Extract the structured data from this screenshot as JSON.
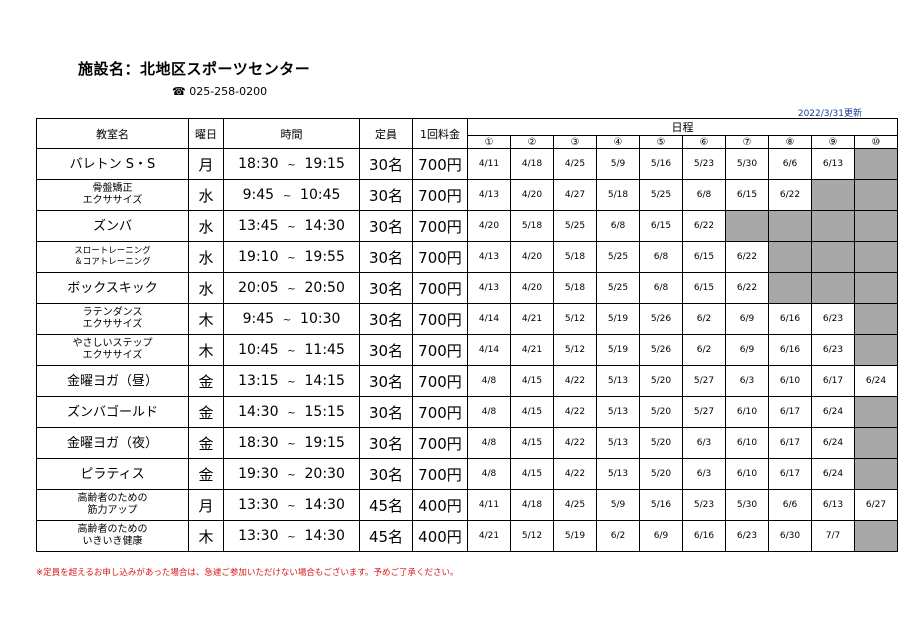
{
  "header": {
    "facility": "施設名：北地区スポーツセンター",
    "phone_icon": "☎",
    "phone": "025-258-0200",
    "updated": "2022/3/31更新"
  },
  "table": {
    "headers": {
      "class": "教室名",
      "day": "曜日",
      "time": "時間",
      "capacity": "定員",
      "fee": "1回料金",
      "schedule": "日程"
    },
    "session_numbers": [
      "①",
      "②",
      "③",
      "④",
      "⑤",
      "⑥",
      "⑦",
      "⑧",
      "⑨",
      "⑩"
    ],
    "tilde": "~",
    "rows": [
      {
        "name": [
          "バレトン S・S"
        ],
        "size": "normal",
        "day": "月",
        "start": "18:30",
        "end": "19:15",
        "cap": "30名",
        "fee": "700円",
        "dates": [
          "4/11",
          "4/18",
          "4/25",
          "5/9",
          "5/16",
          "5/23",
          "5/30",
          "6/6",
          "6/13",
          ""
        ]
      },
      {
        "name": [
          "骨盤矯正",
          "エクササイズ"
        ],
        "size": "small",
        "day": "水",
        "start": "9:45",
        "end": "10:45",
        "cap": "30名",
        "fee": "700円",
        "dates": [
          "4/13",
          "4/20",
          "4/27",
          "5/18",
          "5/25",
          "6/8",
          "6/15",
          "6/22",
          "",
          ""
        ]
      },
      {
        "name": [
          "ズンバ"
        ],
        "size": "normal",
        "day": "水",
        "start": "13:45",
        "end": "14:30",
        "cap": "30名",
        "fee": "700円",
        "dates": [
          "4/20",
          "5/18",
          "5/25",
          "6/8",
          "6/15",
          "6/22",
          "",
          "",
          "",
          ""
        ]
      },
      {
        "name": [
          "スロートレーニング",
          "＆コアトレーニング"
        ],
        "size": "tiny",
        "day": "水",
        "start": "19:10",
        "end": "19:55",
        "cap": "30名",
        "fee": "700円",
        "dates": [
          "4/13",
          "4/20",
          "5/18",
          "5/25",
          "6/8",
          "6/15",
          "6/22",
          "",
          "",
          ""
        ]
      },
      {
        "name": [
          "ボックスキック"
        ],
        "size": "normal",
        "day": "水",
        "start": "20:05",
        "end": "20:50",
        "cap": "30名",
        "fee": "700円",
        "dates": [
          "4/13",
          "4/20",
          "5/18",
          "5/25",
          "6/8",
          "6/15",
          "6/22",
          "",
          "",
          ""
        ]
      },
      {
        "name": [
          "ラテンダンス",
          "エクササイズ"
        ],
        "size": "small",
        "day": "木",
        "start": "9:45",
        "end": "10:30",
        "cap": "30名",
        "fee": "700円",
        "dates": [
          "4/14",
          "4/21",
          "5/12",
          "5/19",
          "5/26",
          "6/2",
          "6/9",
          "6/16",
          "6/23",
          ""
        ]
      },
      {
        "name": [
          "やさしいステップ",
          "エクササイズ"
        ],
        "size": "small",
        "day": "木",
        "start": "10:45",
        "end": "11:45",
        "cap": "30名",
        "fee": "700円",
        "dates": [
          "4/14",
          "4/21",
          "5/12",
          "5/19",
          "5/26",
          "6/2",
          "6/9",
          "6/16",
          "6/23",
          ""
        ]
      },
      {
        "name": [
          "金曜ヨガ（昼）"
        ],
        "size": "normal",
        "day": "金",
        "start": "13:15",
        "end": "14:15",
        "cap": "30名",
        "fee": "700円",
        "dates": [
          "4/8",
          "4/15",
          "4/22",
          "5/13",
          "5/20",
          "5/27",
          "6/3",
          "6/10",
          "6/17",
          "6/24"
        ]
      },
      {
        "name": [
          "ズンバゴールド"
        ],
        "size": "normal",
        "day": "金",
        "start": "14:30",
        "end": "15:15",
        "cap": "30名",
        "fee": "700円",
        "dates": [
          "4/8",
          "4/15",
          "4/22",
          "5/13",
          "5/20",
          "5/27",
          "6/10",
          "6/17",
          "6/24",
          ""
        ]
      },
      {
        "name": [
          "金曜ヨガ（夜）"
        ],
        "size": "normal",
        "day": "金",
        "start": "18:30",
        "end": "19:15",
        "cap": "30名",
        "fee": "700円",
        "dates": [
          "4/8",
          "4/15",
          "4/22",
          "5/13",
          "5/20",
          "6/3",
          "6/10",
          "6/17",
          "6/24",
          ""
        ]
      },
      {
        "name": [
          "ピラティス"
        ],
        "size": "normal",
        "day": "金",
        "start": "19:30",
        "end": "20:30",
        "cap": "30名",
        "fee": "700円",
        "dates": [
          "4/8",
          "4/15",
          "4/22",
          "5/13",
          "5/20",
          "6/3",
          "6/10",
          "6/17",
          "6/24",
          ""
        ]
      },
      {
        "name": [
          "高齢者のための",
          "筋力アップ"
        ],
        "size": "small",
        "day": "月",
        "start": "13:30",
        "end": "14:30",
        "cap": "45名",
        "fee": "400円",
        "dates": [
          "4/11",
          "4/18",
          "4/25",
          "5/9",
          "5/16",
          "5/23",
          "5/30",
          "6/6",
          "6/13",
          "6/27"
        ]
      },
      {
        "name": [
          "高齢者のための",
          "いきいき健康"
        ],
        "size": "small",
        "day": "木",
        "start": "13:30",
        "end": "14:30",
        "cap": "45名",
        "fee": "400円",
        "dates": [
          "4/21",
          "5/12",
          "5/19",
          "6/2",
          "6/9",
          "6/16",
          "6/23",
          "6/30",
          "7/7",
          ""
        ]
      }
    ]
  },
  "footnote": "※定員を超えるお申し込みがあった場合は、急遽ご参加いただけない場合もございます。予めご了承ください。",
  "colors": {
    "empty_cell": "#a8a8a8",
    "footnote": "#d81818",
    "updated": "#1a3a9a"
  }
}
